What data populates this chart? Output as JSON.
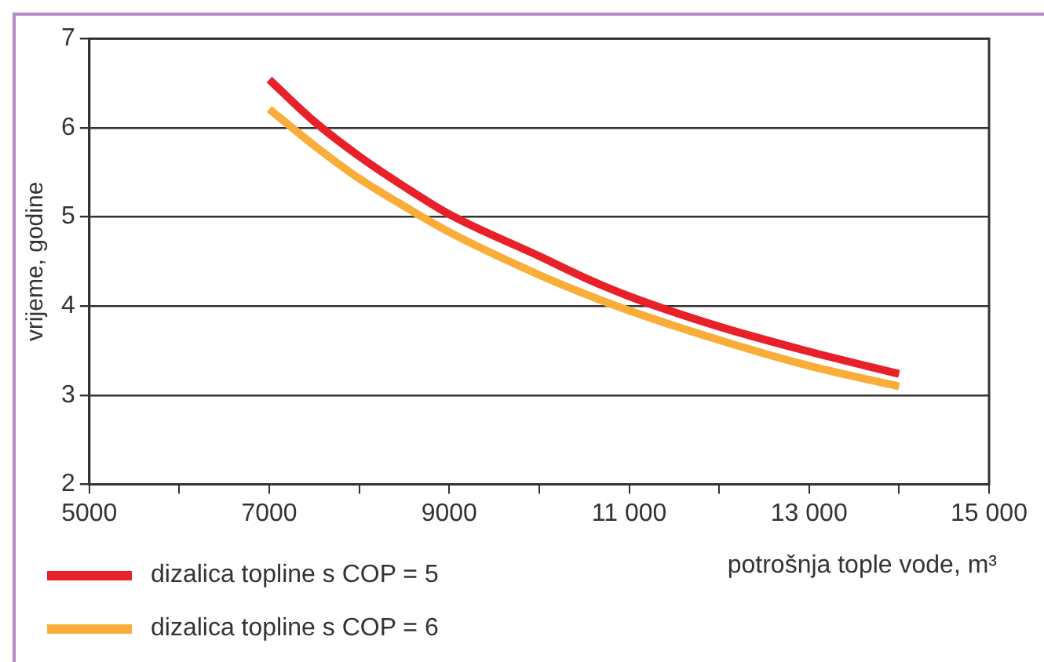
{
  "chart_data": {
    "type": "line",
    "xlabel": "potrošnja tople vode, m³",
    "ylabel": "vrijeme, godine",
    "xlim": [
      5000,
      15000
    ],
    "xticks": [
      5000,
      {
        "value": 6000,
        "label": null
      },
      7000,
      {
        "value": 8000,
        "label": null
      },
      9000,
      {
        "value": 10000,
        "label": null
      },
      {
        "value": 11000,
        "label": "11 000"
      },
      {
        "value": 12000,
        "label": null
      },
      {
        "value": 13000,
        "label": "13 000"
      },
      {
        "value": 14000,
        "label": null
      },
      {
        "value": 15000,
        "label": "15 000"
      }
    ],
    "ylim": [
      2,
      7
    ],
    "yticks": [
      2,
      3,
      4,
      5,
      6,
      7
    ],
    "grid": "y",
    "legend": "bottom left",
    "marker": "none",
    "line_style": "solid",
    "series": [
      {
        "name": "dizalica topline s COP = 5",
        "color": "#e8202a",
        "x": [
          7000,
          7500,
          8000,
          8500,
          9000,
          10000,
          10500,
          11000,
          12000,
          13000,
          14000
        ],
        "values": [
          6.54,
          6.07,
          5.68,
          5.34,
          5.03,
          4.56,
          4.32,
          4.11,
          3.77,
          3.49,
          3.24
        ]
      },
      {
        "name": "dizalica topline s COP = 6",
        "color": "#f9ae3a",
        "x": [
          7000,
          7500,
          8000,
          8500,
          9000,
          10000,
          10500,
          11000,
          12000,
          13000,
          14000
        ],
        "values": [
          6.21,
          5.8,
          5.43,
          5.12,
          4.83,
          4.35,
          4.14,
          3.95,
          3.62,
          3.33,
          3.1
        ]
      }
    ]
  }
}
